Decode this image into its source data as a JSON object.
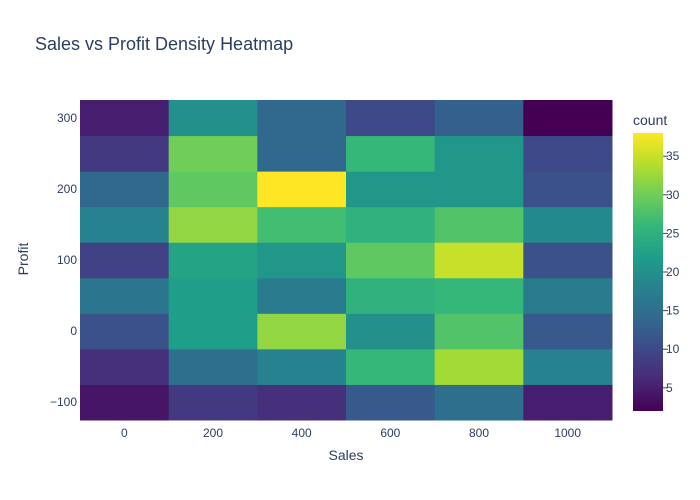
{
  "chart_data": {
    "type": "heatmap",
    "title": "Sales vs Profit Density Heatmap",
    "xlabel": "Sales",
    "ylabel": "Profit",
    "x_categories": [
      "0",
      "200",
      "400",
      "600",
      "800",
      "1000"
    ],
    "y_tick_labels": [
      "−100",
      "0",
      "100",
      "200",
      "300"
    ],
    "y_bins": [
      -100,
      -50,
      0,
      50,
      100,
      150,
      200,
      250,
      300
    ],
    "z_rows_bottom_to_top": [
      [
        4,
        8,
        7,
        12,
        15,
        5
      ],
      [
        7,
        15,
        18,
        26,
        33,
        18
      ],
      [
        11,
        22,
        32,
        20,
        28,
        12
      ],
      [
        16,
        22,
        17,
        25,
        26,
        17
      ],
      [
        9,
        23,
        21,
        29,
        35,
        11
      ],
      [
        18,
        32,
        27,
        25,
        28,
        19
      ],
      [
        14,
        29,
        38,
        21,
        21,
        11
      ],
      [
        8,
        30,
        14,
        26,
        21,
        10
      ],
      [
        5,
        20,
        14,
        10,
        13,
        2
      ]
    ],
    "colorbar": {
      "title": "count",
      "min": 2,
      "max": 38,
      "ticks": [
        5,
        10,
        15,
        20,
        25,
        30,
        35
      ],
      "colorscale": [
        "#440154",
        "#482878",
        "#3e4989",
        "#31688e",
        "#26828e",
        "#1f9e89",
        "#35b779",
        "#6ece58",
        "#b5de2b",
        "#fde725"
      ]
    }
  }
}
